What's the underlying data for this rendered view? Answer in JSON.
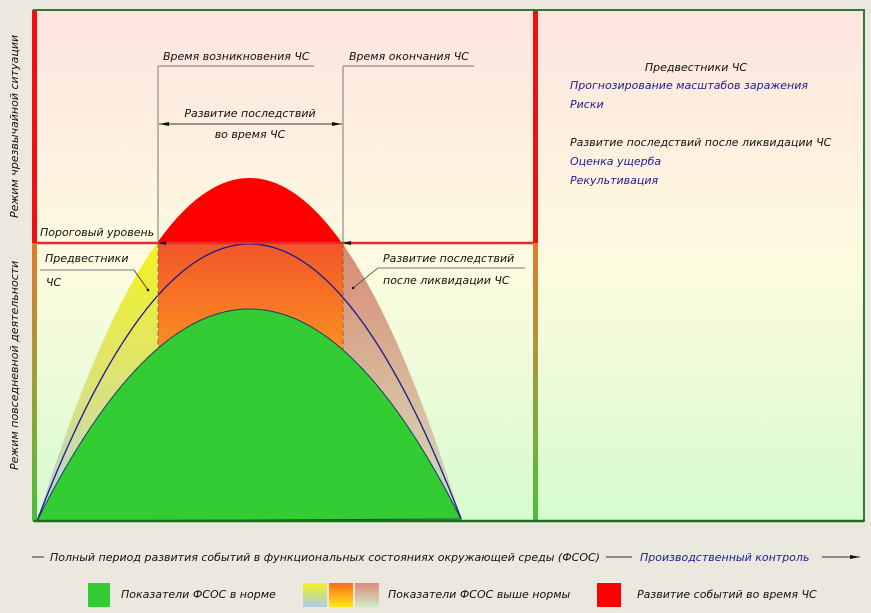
{
  "diagram": {
    "left_labels": {
      "emergency_mode": "Режим чрезвычайной ситуации",
      "everyday_mode": "Режим повседневной деятельности"
    },
    "annotations": {
      "onset_time": "Время возникновения ЧС",
      "end_time": "Время окончания ЧС",
      "development_during_line1": "Развитие последствий",
      "development_during_line2": "во время ЧС",
      "threshold": "Пороговый уровень",
      "precursors_line1": "Предвестники",
      "precursors_line2": "ЧС",
      "after_line1": "Развитие последствий",
      "after_line2": "после ликвидации ЧС"
    },
    "right_panel": {
      "heading1": "Предвестники ЧС",
      "items1": [
        "Прогнозирование масштабов заражения",
        "Риски"
      ],
      "heading2": "Развитие последствий после ликвидации ЧС",
      "items2": [
        "Оценка ущерба",
        "Рекультивация"
      ]
    },
    "bottom_axis": {
      "label": "Полный период развития событий в функциональных состояниях окружающей среды (ФСОС)",
      "extension": "Производственный контроль"
    },
    "legend": [
      {
        "label": "Показатели ФСОС в норме",
        "color": "#33cc33"
      },
      {
        "label": "Показатели ФСОС выше нормы",
        "colors": [
          "#eef02a",
          "#ff7a1a",
          "#dd9980"
        ]
      },
      {
        "label": "Развитие событий во время ЧС",
        "color": "#ff0000"
      }
    ],
    "colors": {
      "frame": "#2f7a2f",
      "threshold": "#e52b2b",
      "curve_line": "#1a1a8c",
      "green": "#33cc33",
      "red": "#ff0000"
    }
  }
}
